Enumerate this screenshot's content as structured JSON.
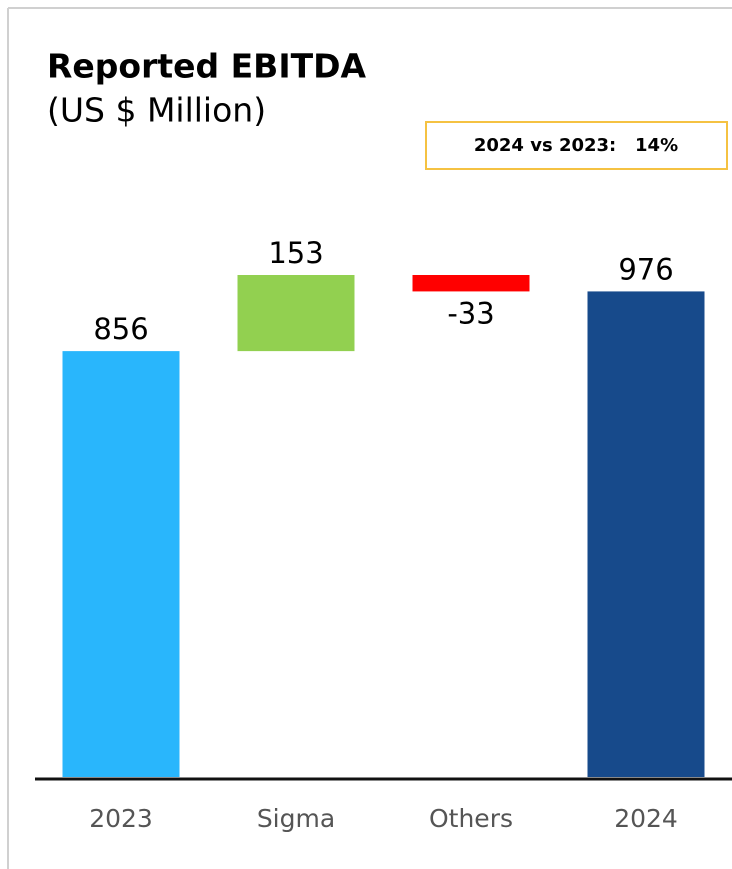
{
  "chart_data": {
    "type": "waterfall",
    "title": "Reported EBITDA",
    "subtitle": "(US $ Million)",
    "annotation": "2024 vs 2023:   14%",
    "categories": [
      "2023",
      "Sigma",
      "Others",
      "2024"
    ],
    "values": [
      856,
      153,
      -33,
      976
    ],
    "kinds": [
      "total",
      "delta",
      "delta",
      "total"
    ],
    "colors": [
      "#29b6fc",
      "#92d050",
      "#ff0000",
      "#174a8b"
    ]
  }
}
